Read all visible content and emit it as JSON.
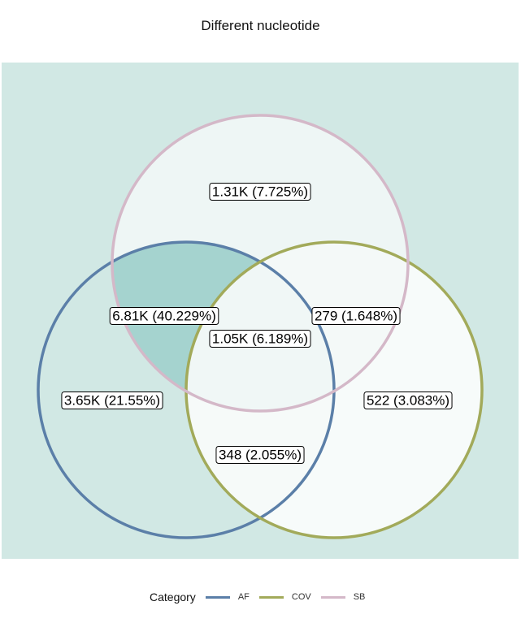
{
  "chart_data": {
    "type": "venn",
    "title": "Different nucleotide",
    "sets": [
      {
        "name": "AF",
        "color": "#5b7fa8"
      },
      {
        "name": "COV",
        "color": "#a2aa5a"
      },
      {
        "name": "SB",
        "color": "#d4b8c8"
      }
    ],
    "regions": [
      {
        "sets": [
          "SB"
        ],
        "label": "1.31K (7.725%)",
        "fraction": 0.07725,
        "fill": "#eef6f5"
      },
      {
        "sets": [
          "AF",
          "SB"
        ],
        "label": "6.81K (40.229%)",
        "fraction": 0.40229,
        "fill": "#a5d3cf"
      },
      {
        "sets": [
          "COV",
          "SB"
        ],
        "label": "279 (1.648%)",
        "fraction": 0.01648,
        "fill": "#f4f9f8"
      },
      {
        "sets": [
          "AF",
          "COV",
          "SB"
        ],
        "label": "1.05K (6.189%)",
        "fraction": 0.06189,
        "fill": "#f0f7f6"
      },
      {
        "sets": [
          "AF"
        ],
        "label": "3.65K (21.55%)",
        "fraction": 0.2155,
        "fill": "#d1e8e4"
      },
      {
        "sets": [
          "COV"
        ],
        "label": "522 (3.083%)",
        "fraction": 0.03083,
        "fill": "#f7fbfa"
      },
      {
        "sets": [
          "AF",
          "COV"
        ],
        "label": "348 (2.055%)",
        "fraction": 0.02055,
        "fill": "#f6faf9"
      }
    ],
    "background": "#d1e8e4",
    "legend": {
      "title": "Category",
      "position": "bottom"
    }
  }
}
